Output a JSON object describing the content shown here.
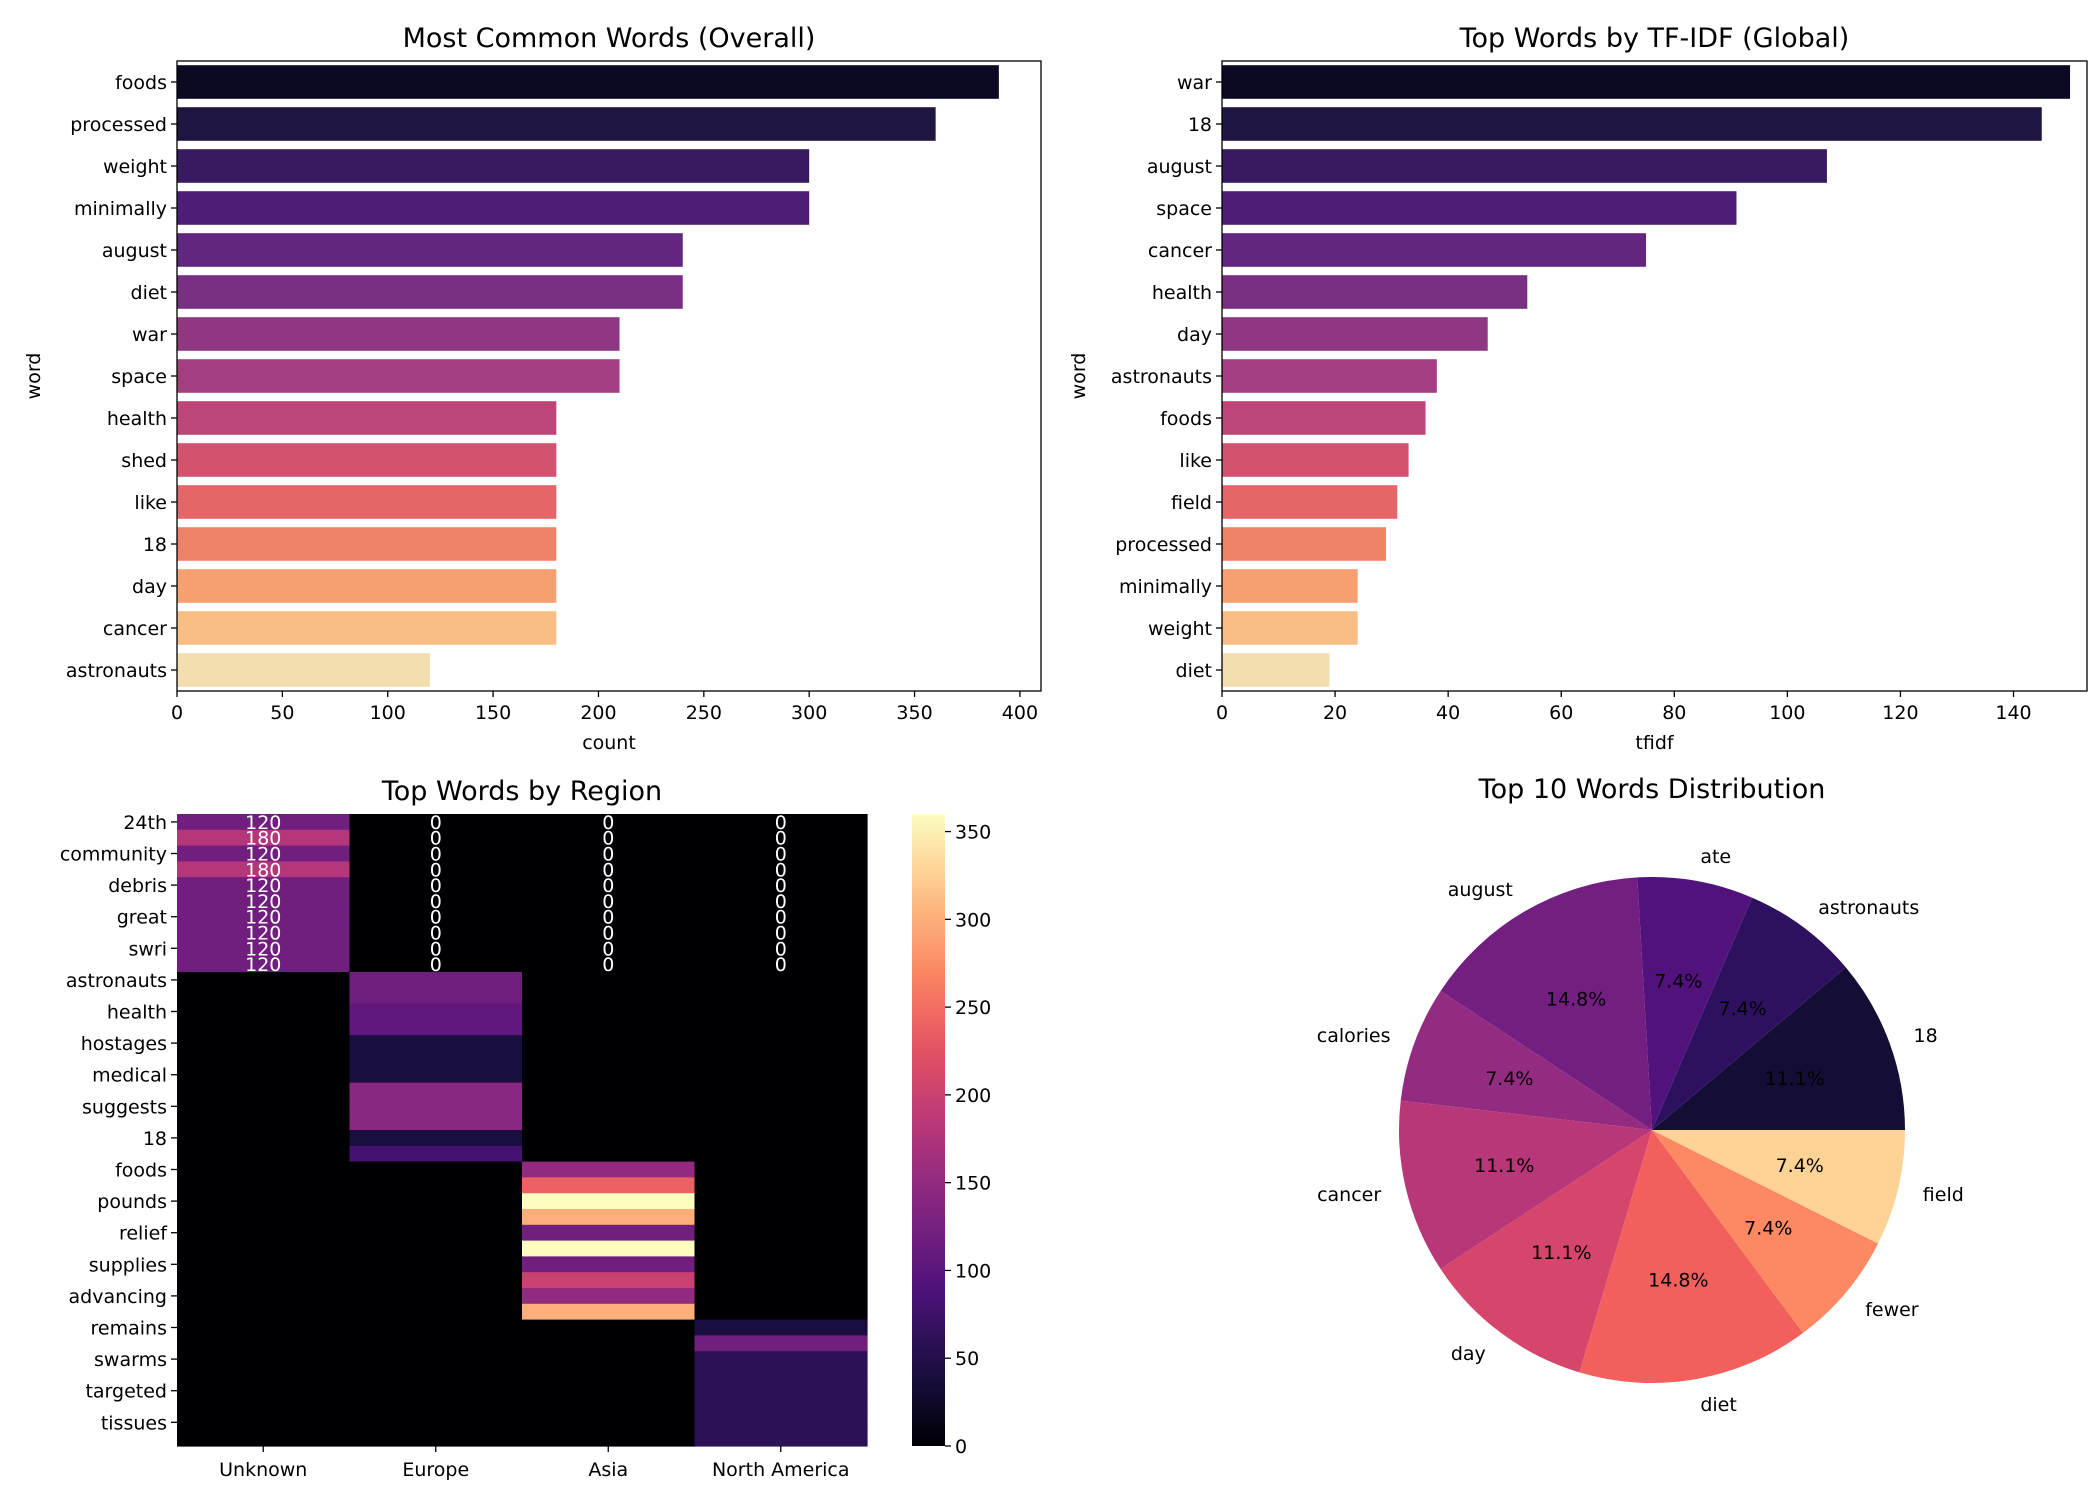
{
  "chart_data": [
    {
      "type": "bar",
      "orientation": "horizontal",
      "title": "Most Common Words (Overall)",
      "xlabel": "count",
      "ylabel": "word",
      "xlim": [
        0,
        410
      ],
      "xticks": [
        0,
        50,
        100,
        150,
        200,
        250,
        300,
        350,
        400
      ],
      "grid": false,
      "colormap": "magma",
      "categories": [
        "foods",
        "processed",
        "weight",
        "minimally",
        "august",
        "diet",
        "war",
        "space",
        "health",
        "shed",
        "like",
        "18",
        "day",
        "cancer",
        "astronauts"
      ],
      "values": [
        390,
        360,
        300,
        300,
        240,
        240,
        210,
        210,
        180,
        180,
        180,
        180,
        180,
        180,
        120
      ],
      "colors": [
        "#0b0924",
        "#211541",
        "#371a5f",
        "#4e1d76",
        "#632680",
        "#792f82",
        "#8f3783",
        "#a53e80",
        "#bd4679",
        "#d3536f",
        "#e46668",
        "#ef8266",
        "#f5a06e",
        "#f8be84",
        "#f2deae"
      ]
    },
    {
      "type": "bar",
      "orientation": "horizontal",
      "title": "Top Words by TF-IDF (Global)",
      "xlabel": "tfidf",
      "ylabel": "word",
      "xlim": [
        0,
        153
      ],
      "xticks": [
        0,
        20,
        40,
        60,
        80,
        100,
        120,
        140
      ],
      "grid": false,
      "colormap": "magma",
      "categories": [
        "war",
        "18",
        "august",
        "space",
        "cancer",
        "health",
        "day",
        "astronauts",
        "foods",
        "like",
        "field",
        "processed",
        "minimally",
        "weight",
        "diet"
      ],
      "values": [
        150,
        145,
        107,
        91,
        75,
        54,
        47,
        38,
        36,
        33,
        31,
        29,
        24,
        24,
        19
      ],
      "colors": [
        "#0b0924",
        "#211541",
        "#371a5f",
        "#4e1d76",
        "#632680",
        "#792f82",
        "#8f3783",
        "#a53e80",
        "#bd4679",
        "#d3536f",
        "#e46668",
        "#ef8266",
        "#f5a06e",
        "#f8be84",
        "#f2deae"
      ]
    },
    {
      "type": "heatmap",
      "title": "Top Words by Region",
      "colormap": "magma",
      "vmin": 0,
      "vmax": 360,
      "colorbar_ticks": [
        0,
        50,
        100,
        150,
        200,
        250,
        300,
        350
      ],
      "columns": [
        "Unknown",
        "Europe",
        "Asia",
        "North America"
      ],
      "row_labels_shown": [
        "24th",
        "community",
        "debris",
        "great",
        "swri",
        "astronauts",
        "health",
        "hostages",
        "medical",
        "suggests",
        "18",
        "foods",
        "pounds",
        "relief",
        "supplies",
        "advancing",
        "remains",
        "swarms",
        "targeted",
        "tissues"
      ],
      "row_count": 40,
      "annotated_rows": 10,
      "values": [
        [
          120,
          0,
          0,
          0
        ],
        [
          180,
          0,
          0,
          0
        ],
        [
          120,
          0,
          0,
          0
        ],
        [
          180,
          0,
          0,
          0
        ],
        [
          120,
          0,
          0,
          0
        ],
        [
          120,
          0,
          0,
          0
        ],
        [
          120,
          0,
          0,
          0
        ],
        [
          120,
          0,
          0,
          0
        ],
        [
          120,
          0,
          0,
          0
        ],
        [
          120,
          0,
          0,
          0
        ],
        [
          0,
          120,
          0,
          0
        ],
        [
          0,
          120,
          0,
          0
        ],
        [
          0,
          105,
          0,
          0
        ],
        [
          0,
          105,
          0,
          0
        ],
        [
          0,
          40,
          0,
          0
        ],
        [
          0,
          40,
          0,
          0
        ],
        [
          0,
          40,
          0,
          0
        ],
        [
          0,
          140,
          0,
          0
        ],
        [
          0,
          140,
          0,
          0
        ],
        [
          0,
          140,
          0,
          0
        ],
        [
          0,
          40,
          0,
          0
        ],
        [
          0,
          80,
          0,
          0
        ],
        [
          0,
          0,
          150,
          0
        ],
        [
          0,
          0,
          240,
          0
        ],
        [
          0,
          0,
          360,
          0
        ],
        [
          0,
          0,
          300,
          0
        ],
        [
          0,
          0,
          120,
          0
        ],
        [
          0,
          0,
          360,
          0
        ],
        [
          0,
          0,
          120,
          0
        ],
        [
          0,
          0,
          200,
          0
        ],
        [
          0,
          0,
          150,
          0
        ],
        [
          0,
          0,
          300,
          0
        ],
        [
          0,
          0,
          0,
          40
        ],
        [
          0,
          0,
          0,
          120
        ],
        [
          0,
          0,
          0,
          60
        ],
        [
          0,
          0,
          0,
          60
        ],
        [
          0,
          0,
          0,
          60
        ],
        [
          0,
          0,
          0,
          60
        ],
        [
          0,
          0,
          0,
          60
        ],
        [
          0,
          0,
          0,
          60
        ]
      ]
    },
    {
      "type": "pie",
      "title": "Top 10 Words Distribution",
      "colormap": "magma",
      "labels": [
        "18",
        "astronauts",
        "ate",
        "august",
        "calories",
        "cancer",
        "day",
        "diet",
        "fewer",
        "field"
      ],
      "values": [
        11.1,
        7.4,
        7.4,
        14.8,
        7.4,
        11.1,
        11.1,
        14.8,
        7.4,
        7.4
      ],
      "pct_labels": [
        "11.1%",
        "7.4%",
        "7.4%",
        "14.8%",
        "7.4%",
        "11.1%",
        "11.1%",
        "14.8%",
        "7.4%",
        "7.4%"
      ],
      "colors": [
        "#140e36",
        "#2d1160",
        "#51127c",
        "#721f81",
        "#932b80",
        "#b73779",
        "#d6456c",
        "#f1605d",
        "#fc8961",
        "#fed395"
      ]
    }
  ]
}
